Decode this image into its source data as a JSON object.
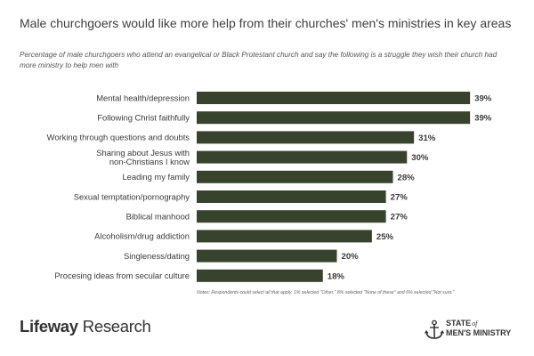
{
  "title": "Male churchgoers would like more help from their churches' men's ministries in key areas",
  "subtitle": "Percentage of male churchgoers who attend an evangelical or Black Protestant church and say the following is a struggle they wish their church had more ministry to help men with",
  "notes": "Notes: Respondents could select all that apply. 1% selected \"Other,\" 8% selected \"None of these\" and 6% selected \"Not sure.\"",
  "brand": {
    "part1": "Lifeway",
    "part2": "Research"
  },
  "logo": {
    "line1": "STATE",
    "of": "of",
    "line2": "MEN'S MINISTRY",
    "icon": "anchor-icon"
  },
  "colors": {
    "bar": "#38432e",
    "text": "#3a3a3a"
  },
  "chart_data": {
    "type": "bar",
    "orientation": "horizontal",
    "xlim": [
      0,
      40
    ],
    "value_format": "percent",
    "grid": false,
    "categories": [
      [
        "Mental health/depression"
      ],
      [
        "Following Christ faithfully"
      ],
      [
        "Working through questions and doubts"
      ],
      [
        "Sharing about Jesus with",
        "non-Christians I know"
      ],
      [
        "Leading my family"
      ],
      [
        "Sexual temptation/pornography"
      ],
      [
        "Biblical manhood"
      ],
      [
        "Alcoholism/drug addiction"
      ],
      [
        "Singleness/dating"
      ],
      [
        "Procesing ideas from secular culture"
      ]
    ],
    "values": [
      39,
      39,
      31,
      30,
      28,
      27,
      27,
      25,
      20,
      18
    ],
    "value_labels": [
      "39%",
      "39%",
      "31%",
      "30%",
      "28%",
      "27%",
      "27%",
      "25%",
      "20%",
      "18%"
    ]
  }
}
